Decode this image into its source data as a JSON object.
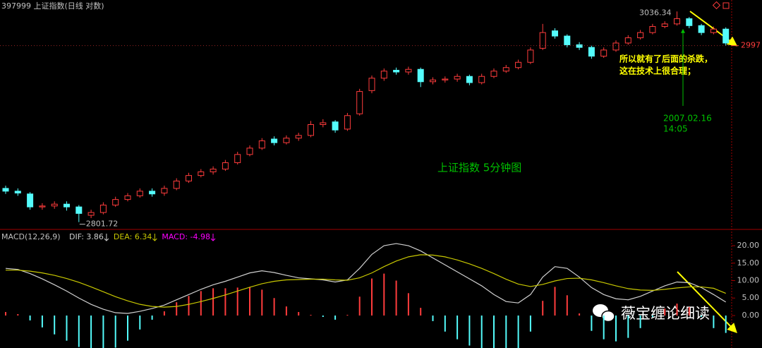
{
  "header": {
    "title": "397999 上证指数(日线 对数)"
  },
  "chart_data": [
    {
      "type": "candlestick",
      "log_scale": true,
      "up_color": "#ff3c3c",
      "down_color": "#54fcfc",
      "ylim": [
        2793.9,
        3049.7
      ],
      "open": [
        2838,
        2835,
        2832,
        2818,
        2819,
        2821,
        2818,
        2809,
        2812,
        2820,
        2826,
        2830,
        2835,
        2833,
        2838,
        2846,
        2852,
        2856,
        2859,
        2866,
        2875,
        2882,
        2892,
        2888,
        2893,
        2896,
        2908,
        2911,
        2903,
        2920,
        2946,
        2960,
        2969,
        2967,
        2970,
        2956,
        2958,
        2959,
        2962,
        2955,
        2962,
        2968,
        2972,
        2978,
        2994,
        3014,
        3008,
        2998,
        2995,
        2985,
        2992,
        3000,
        3006,
        3012,
        3019,
        3022,
        3028,
        3020,
        3012,
        3016
      ],
      "high": [
        2841,
        2838,
        2834,
        2822,
        2824,
        2824,
        2820,
        2815,
        2823,
        2829,
        2833,
        2838,
        2838,
        2841,
        2849,
        2855,
        2859,
        2862,
        2869,
        2878,
        2885,
        2893,
        2895,
        2896,
        2899,
        2912,
        2914,
        2913,
        2921,
        2948,
        2963,
        2971,
        2972,
        2973,
        2972,
        2961,
        2962,
        2965,
        2964,
        2965,
        2971,
        2975,
        2981,
        2995,
        3022,
        3017,
        3010,
        3001,
        2997,
        2995,
        3003,
        3009,
        3015,
        3022,
        3025,
        3036.34,
        3030,
        3022,
        3019,
        3018
      ],
      "low": [
        2832,
        2830,
        2815,
        2815,
        2816,
        2814,
        2801.72,
        2806,
        2810,
        2818,
        2824,
        2828,
        2829,
        2830,
        2836,
        2844,
        2850,
        2853,
        2857,
        2864,
        2873,
        2880,
        2885,
        2886,
        2890,
        2894,
        2905,
        2899,
        2901,
        2918,
        2943,
        2957,
        2964,
        2964,
        2950,
        2953,
        2955,
        2956,
        2952,
        2953,
        2960,
        2966,
        2970,
        2976,
        2992,
        3005,
        2995,
        2992,
        2982,
        2983,
        2990,
        2998,
        3004,
        3010,
        3017,
        3020,
        3017,
        3009,
        3010,
        2997
      ],
      "close": [
        2835,
        2833,
        2818,
        2819,
        2821,
        2818,
        2811,
        2812,
        2820,
        2826,
        2830,
        2835,
        2832,
        2838,
        2846,
        2852,
        2856,
        2859,
        2866,
        2875,
        2882,
        2890,
        2888,
        2893,
        2896,
        2908,
        2910,
        2902,
        2918,
        2945,
        2960,
        2968,
        2967,
        2970,
        2956,
        2958,
        2959,
        2962,
        2955,
        2962,
        2968,
        2972,
        2978,
        2992,
        3012,
        3008,
        2998,
        2995,
        2985,
        2992,
        3000,
        3006,
        3012,
        3019,
        3022,
        3028,
        3020,
        3012,
        3016,
        3000
      ],
      "high_label": "3036.34",
      "low_label": "2801.72",
      "price_marker": {
        "value": 2997,
        "label": "2997",
        "color": "#ff3c3c"
      }
    },
    {
      "type": "macd",
      "title": "MACD(12,26,9)",
      "ylim": [
        -9.3,
        24.25
      ],
      "yticks": [
        {
          "value": 0,
          "label": "0.00"
        },
        {
          "value": 5,
          "label": "5.00"
        },
        {
          "value": 10,
          "label": "10.00"
        },
        {
          "value": 15,
          "label": "15.00"
        },
        {
          "value": 20,
          "label": "20.00"
        }
      ],
      "series": [
        {
          "name": "DIF: 3.86",
          "color": "#d0d0d0",
          "values": [
            13.5,
            13.2,
            12,
            10.5,
            8.8,
            7,
            5,
            3.2,
            1.8,
            0.8,
            0.6,
            1.2,
            2,
            3,
            4.5,
            6,
            7.5,
            8.8,
            9.8,
            11,
            12.2,
            12.8,
            12.3,
            11.5,
            10.8,
            10.5,
            10.2,
            9.6,
            10.2,
            13.5,
            17.5,
            20,
            20.6,
            20,
            18.5,
            16.5,
            14.5,
            12.5,
            10.5,
            8.5,
            6,
            4,
            3.6,
            6,
            11,
            14,
            13.5,
            11,
            8,
            6,
            4.8,
            4.5,
            5.5,
            7,
            8.5,
            9.6,
            9.4,
            8,
            6,
            3.86
          ]
        },
        {
          "name": "DEA: 6.34",
          "color": "#c8c800",
          "values": [
            13,
            13,
            12.7,
            12.2,
            11.5,
            10.6,
            9.5,
            8.2,
            6.8,
            5.4,
            4.2,
            3.2,
            2.6,
            2.4,
            2.6,
            3.2,
            4,
            4.9,
            5.9,
            7,
            8.1,
            9.1,
            9.8,
            10.2,
            10.3,
            10.4,
            10.4,
            10.2,
            10.1,
            10.8,
            12.2,
            14,
            15.6,
            16.8,
            17.4,
            17.3,
            16.8,
            15.9,
            14.8,
            13.5,
            12,
            10.4,
            9,
            8.3,
            8.9,
            9.9,
            10.6,
            10.7,
            10.2,
            9.4,
            8.5,
            7.7,
            7.3,
            7.2,
            7.5,
            7.9,
            8.2,
            8.2,
            7.8,
            6.34
          ]
        },
        {
          "name": "MACD: -4.98",
          "color": "#ff00ff",
          "up_color": "#ff3c3c",
          "down_color": "#54fcfc",
          "values": [
            1,
            0.4,
            -1.4,
            -3.4,
            -5.4,
            -7.2,
            -9,
            -10,
            -10,
            -9.2,
            -7.2,
            -4,
            -1.2,
            1.2,
            3.8,
            5.6,
            7,
            7.8,
            7.8,
            8,
            8.2,
            7.4,
            5,
            2.6,
            1,
            0.2,
            -0.4,
            -1.2,
            0.2,
            5.4,
            10.6,
            12,
            10,
            6.4,
            2.2,
            -1.6,
            -4.6,
            -6.8,
            -8.6,
            -10,
            -12,
            -12.8,
            -10.8,
            -4.6,
            4.2,
            8.2,
            5.8,
            0.6,
            -4.4,
            -6.8,
            -7.4,
            -6.4,
            -3.6,
            -0.4,
            2,
            3.4,
            2.4,
            -0.4,
            -3.6,
            -4.98
          ]
        }
      ]
    }
  ],
  "annotations": {
    "note_line1": "所以就有了后面的杀跌，",
    "note_line2": "这在技术上很合理；",
    "date": "2007.02.16",
    "time": "14:05",
    "chart_label": "上证指数 5分钟图"
  },
  "watermark": "薇宝缠论细读"
}
